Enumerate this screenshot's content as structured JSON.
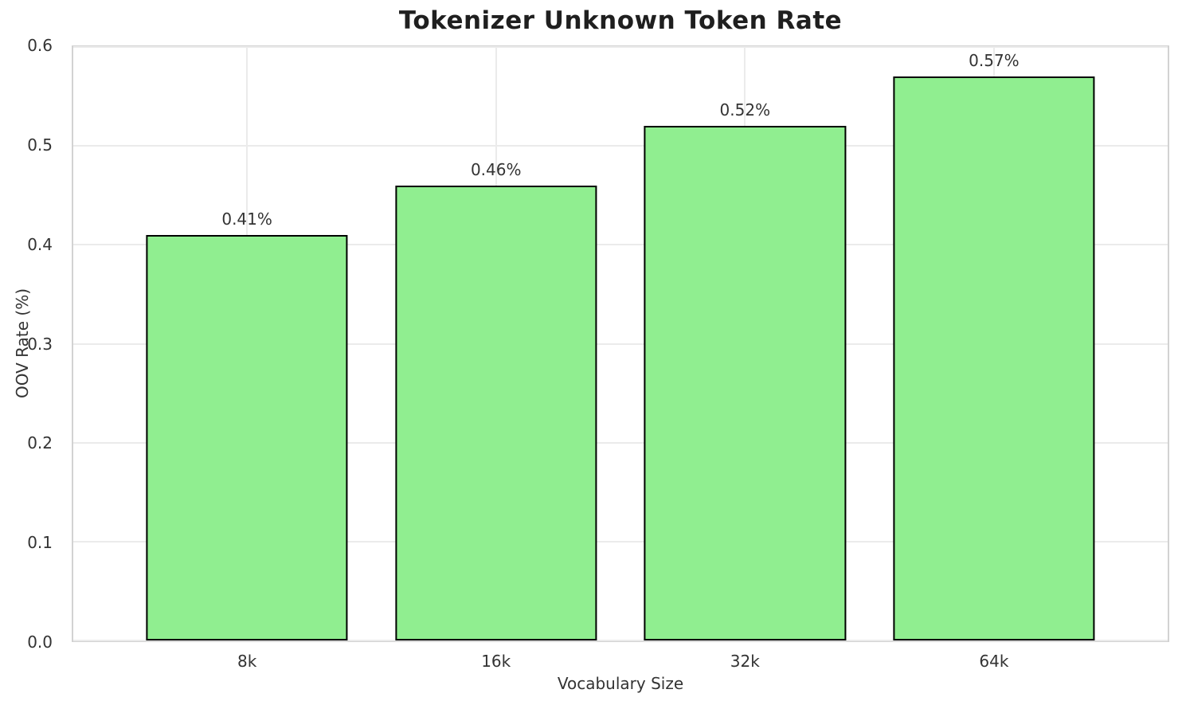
{
  "chart_data": {
    "type": "bar",
    "title": "Tokenizer Unknown Token Rate",
    "xlabel": "Vocabulary Size",
    "ylabel": "OOV Rate (%)",
    "categories": [
      "8k",
      "16k",
      "32k",
      "64k"
    ],
    "values": [
      0.41,
      0.46,
      0.52,
      0.57
    ],
    "bar_labels": [
      "0.41%",
      "0.46%",
      "0.52%",
      "0.57%"
    ],
    "ylim": [
      0.0,
      0.6
    ],
    "yticks": [
      0.0,
      0.1,
      0.2,
      0.3,
      0.4,
      0.5,
      0.6
    ],
    "ytick_labels": [
      "0.0",
      "0.1",
      "0.2",
      "0.3",
      "0.4",
      "0.5",
      "0.6"
    ],
    "grid": "on",
    "legend": "none",
    "colors": {
      "bar_fill": "#90EE90",
      "bar_edge": "#000000",
      "grid": "#ebebeb",
      "spine": "#d2d2d2",
      "title_text": "#1f1f1f",
      "tick_text": "#333333",
      "background": "#ffffff"
    }
  }
}
